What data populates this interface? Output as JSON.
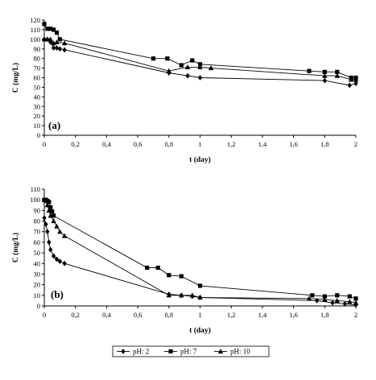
{
  "chart_data": [
    {
      "type": "line",
      "panel_label": "(a)",
      "xlabel": "t (day)",
      "ylabel": "C (mg/L)",
      "xlim": [
        0,
        2
      ],
      "ylim": [
        0,
        120
      ],
      "xticks": [
        0,
        0.2,
        0.4,
        0.6,
        0.8,
        1,
        1.2,
        1.4,
        1.6,
        1.8,
        2
      ],
      "xtick_labels": [
        "0",
        "0,2",
        "0,4",
        "0,6",
        "0,8",
        "1",
        "1,2",
        "1,4",
        "1,6",
        "1,8",
        "2"
      ],
      "yticks": [
        0,
        10,
        20,
        30,
        40,
        50,
        60,
        70,
        80,
        90,
        100,
        110,
        120
      ],
      "ytick_labels": [
        "0",
        "10",
        "20",
        "30",
        "40",
        "50",
        "60",
        "70",
        "80",
        "90",
        "100",
        "110",
        "120"
      ],
      "grid": false,
      "series": [
        {
          "name": "pH: 2",
          "marker": "diamond",
          "x": [
            0,
            0.02,
            0.04,
            0.06,
            0.08,
            0.1,
            0.13,
            0.8,
            0.92,
            1.0,
            1.8,
            1.96,
            2.0
          ],
          "y": [
            100,
            100,
            97,
            91,
            91,
            90,
            89,
            65,
            62,
            60,
            57,
            52,
            54
          ]
        },
        {
          "name": "pH: 7",
          "marker": "square",
          "x": [
            0,
            0.02,
            0.04,
            0.06,
            0.08,
            0.1,
            0.7,
            0.79,
            0.88,
            0.95,
            1.0,
            1.7,
            1.8,
            1.88,
            1.97,
            2.0
          ],
          "y": [
            116,
            111,
            111,
            110,
            107,
            100,
            80,
            80,
            73,
            78,
            74,
            67,
            66,
            66,
            60,
            60
          ]
        },
        {
          "name": "pH: 10",
          "marker": "triangle",
          "x": [
            0,
            0.02,
            0.04,
            0.06,
            0.08,
            0.13,
            0.8,
            0.92,
            1.0,
            1.07,
            1.8,
            1.88,
            1.97,
            2.0
          ],
          "y": [
            100,
            100,
            100,
            96,
            97,
            96,
            67,
            71,
            71,
            70,
            62,
            62,
            58,
            58
          ]
        }
      ]
    },
    {
      "type": "line",
      "panel_label": "(b)",
      "xlabel": "t (day)",
      "ylabel": "C (mg/L)",
      "xlim": [
        0,
        2
      ],
      "ylim": [
        0,
        110
      ],
      "xticks": [
        0,
        0.2,
        0.4,
        0.6,
        0.8,
        1,
        1.2,
        1.4,
        1.6,
        1.8,
        2
      ],
      "xtick_labels": [
        "0",
        "0,2",
        "0,4",
        "0,6",
        "0,8",
        "1",
        "1,2",
        "1,4",
        "1,6",
        "1,8",
        "2"
      ],
      "yticks": [
        0,
        10,
        20,
        30,
        40,
        50,
        60,
        70,
        80,
        90,
        100,
        110
      ],
      "ytick_labels": [
        "0",
        "10",
        "20",
        "30",
        "40",
        "50",
        "60",
        "70",
        "80",
        "90",
        "100",
        "110"
      ],
      "grid": false,
      "series": [
        {
          "name": "pH: 2",
          "marker": "diamond",
          "x": [
            0,
            0.01,
            0.02,
            0.03,
            0.04,
            0.06,
            0.08,
            0.1,
            0.13,
            0.8,
            0.88,
            0.95,
            1.0,
            1.75,
            1.85,
            1.93,
            2.0
          ],
          "y": [
            83,
            77,
            70,
            60,
            53,
            47,
            44,
            42,
            40,
            11,
            10,
            9,
            8,
            5,
            3,
            2,
            1
          ]
        },
        {
          "name": "pH: 7",
          "marker": "square",
          "x": [
            0,
            0.01,
            0.02,
            0.03,
            0.04,
            0.05,
            0.06,
            0.66,
            0.73,
            0.8,
            0.88,
            1.0,
            1.72,
            1.8,
            1.88,
            1.96,
            2.0
          ],
          "y": [
            100,
            100,
            99,
            98,
            93,
            89,
            85,
            36,
            36,
            29,
            28,
            19,
            10,
            9,
            10,
            9,
            7
          ]
        },
        {
          "name": "pH: 10",
          "marker": "triangle",
          "x": [
            0,
            0.01,
            0.02,
            0.03,
            0.04,
            0.06,
            0.08,
            0.1,
            0.13,
            0.8,
            0.88,
            0.95,
            1.0,
            1.7,
            1.8,
            1.88,
            1.96,
            2.0
          ],
          "y": [
            100,
            99,
            95,
            90,
            85,
            80,
            75,
            70,
            66,
            10,
            10,
            10,
            8,
            7,
            6,
            5,
            4,
            3
          ]
        }
      ]
    }
  ],
  "legend": {
    "position": "bottom-center",
    "items": [
      {
        "label": "pH: 2",
        "marker": "diamond"
      },
      {
        "label": "pH: 7",
        "marker": "square"
      },
      {
        "label": "pH: 10",
        "marker": "triangle"
      }
    ]
  }
}
